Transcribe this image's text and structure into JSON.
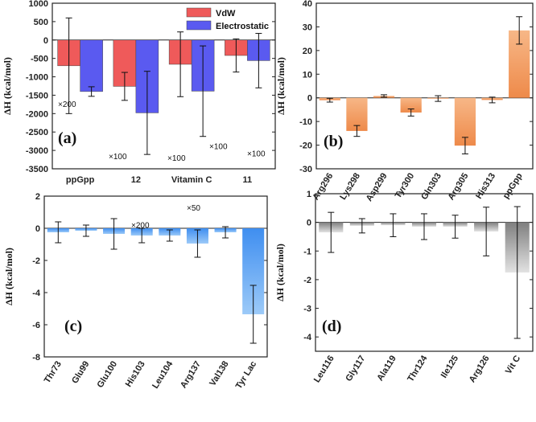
{
  "chart_data": [
    {
      "type": "bar",
      "panel_label": "(a)",
      "ylabel": "ΔH (kcal/mol)",
      "ylim": [
        -3500,
        1000
      ],
      "yticks": [
        1000,
        500,
        0,
        -500,
        -1000,
        -1500,
        -2000,
        -2500,
        -3000,
        -3500
      ],
      "categories": [
        "ppGpp",
        "12",
        "Vitamin C",
        "11"
      ],
      "legend_position": "top-right",
      "series": [
        {
          "name": "VdW",
          "color": "#ef5a5a",
          "values": [
            -700,
            -1260,
            -660,
            -420
          ],
          "errors": [
            1300,
            380,
            880,
            450
          ]
        },
        {
          "name": "Electrostatic",
          "color": "#5a5af0",
          "values": [
            -1400,
            -1980,
            -1390,
            -560
          ],
          "errors": [
            130,
            1130,
            1230,
            740
          ]
        }
      ],
      "scale_annotations": [
        "×200",
        "×100",
        "×200",
        "×100",
        "×100",
        "×50",
        "×100"
      ]
    },
    {
      "type": "bar",
      "panel_label": "(b)",
      "ylabel": "ΔH (kcal/mol)",
      "ylim": [
        -30,
        40
      ],
      "yticks": [
        40,
        30,
        20,
        10,
        0,
        -10,
        -20,
        -30
      ],
      "categories": [
        "Arg296",
        "Lys298",
        "Asp299",
        "Tyr300",
        "Gln303",
        "Arg305",
        "His313",
        "ppGpp"
      ],
      "values": [
        -1.0,
        -14.0,
        0.8,
        -6.2,
        -0.3,
        -20.2,
        -0.9,
        28.5
      ],
      "errors": [
        0.8,
        2.3,
        0.5,
        1.5,
        1.2,
        3.5,
        1.2,
        5.8
      ],
      "color": "#f29a5e"
    },
    {
      "type": "bar",
      "panel_label": "(c)",
      "ylabel": "ΔH (kcal/mol)",
      "ylim": [
        -8,
        2
      ],
      "yticks": [
        2,
        0,
        -2,
        -4,
        -6,
        -8
      ],
      "categories": [
        "Thr73",
        "Glu99",
        "Glu100",
        "His103",
        "Leu104",
        "Arg137",
        "Val138",
        "Tyr Lac"
      ],
      "values": [
        -0.25,
        -0.15,
        -0.35,
        -0.45,
        -0.45,
        -0.95,
        -0.25,
        -5.35
      ],
      "errors": [
        0.65,
        0.35,
        0.95,
        0.45,
        0.35,
        0.85,
        0.35,
        1.8
      ],
      "color": "#5aa0f0"
    },
    {
      "type": "bar",
      "panel_label": "(d)",
      "ylabel": "ΔH (kcal/mol)",
      "ylim": [
        -4.5,
        1
      ],
      "yticks": [
        1,
        0,
        -1,
        -2,
        -3,
        -4
      ],
      "categories": [
        "Leu116",
        "Gly117",
        "Ala119",
        "Thr124",
        "Ile125",
        "Arg126",
        "Vit C"
      ],
      "values": [
        -0.35,
        -0.12,
        -0.1,
        -0.15,
        -0.15,
        -0.32,
        -1.75
      ],
      "errors": [
        0.7,
        0.25,
        0.4,
        0.45,
        0.4,
        0.85,
        2.3
      ],
      "color": "#a8a8a8"
    }
  ]
}
